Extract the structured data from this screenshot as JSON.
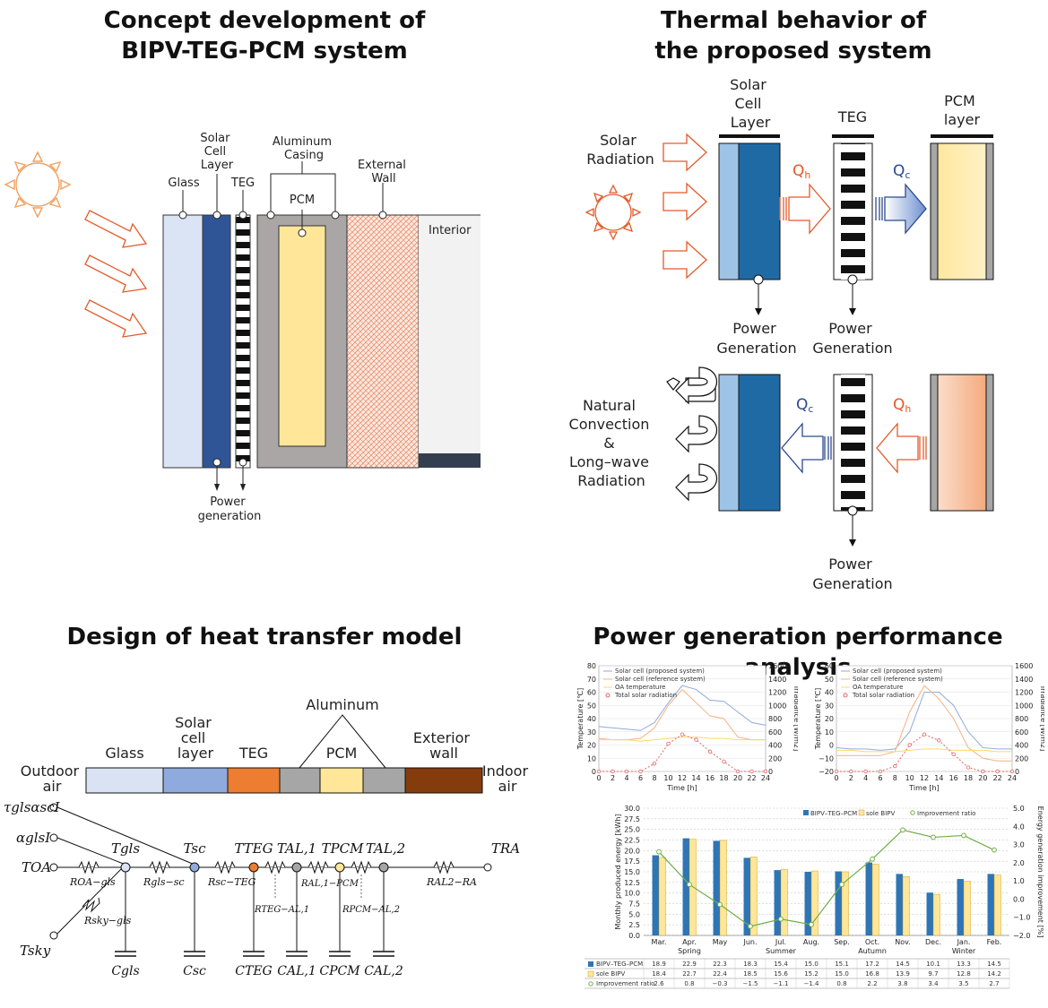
{
  "titles": {
    "concept": [
      "Concept development of",
      "BIPV-TEG-PCM system"
    ],
    "thermal": [
      "Thermal behavior of",
      "the proposed system"
    ],
    "heat": "Design of heat transfer model",
    "power": "Power generation performance analysis"
  },
  "concept": {
    "glass": "Glass",
    "solar_cell": [
      "Solar",
      "Cell",
      "Layer"
    ],
    "teg": "TEG",
    "aluminum": [
      "Aluminum",
      "Casing"
    ],
    "pcm": "PCM",
    "external_wall": [
      "External",
      "Wall"
    ],
    "interior": "Interior",
    "power": [
      "Power",
      "generation"
    ]
  },
  "thermal": {
    "solar_radiation": [
      "Solar",
      "Radiation"
    ],
    "solar_cell": [
      "Solar",
      "Cell",
      "Layer"
    ],
    "teg": "TEG",
    "pcm": [
      "PCM",
      "layer"
    ],
    "qh": "Q",
    "qc": "Q",
    "qh_sub": "h",
    "qc_sub": "c",
    "power": [
      "Power",
      "Generation"
    ],
    "natural": [
      "Natural",
      "Convection",
      "&",
      "Long–wave",
      "Radiation"
    ]
  },
  "heat": {
    "layers": [
      "Glass",
      "Solar cell layer",
      "TEG",
      "Aluminum",
      "PCM",
      "Exterior wall"
    ],
    "solar_layer": [
      "Solar",
      "cell",
      "layer"
    ],
    "exterior": [
      "Exterior",
      "wall"
    ],
    "outdoor": [
      "Outdoor",
      "air"
    ],
    "indoor": [
      "Indoor",
      "air"
    ],
    "inputs": [
      "τglsαscI",
      "αglsI",
      "TOA",
      "Tsky"
    ],
    "nodes": [
      "Tgls",
      "Tsc",
      "TTEG",
      "TAL,1",
      "TPCM",
      "TAL,2",
      "TRA"
    ],
    "resistances": [
      "ROA−gls",
      "Rgls−sc",
      "Rsc−TEG",
      "RTEG−AL,1",
      "RAL,1−PCM",
      "RPCM−AL,2",
      "RAL2−RA",
      "Rsky−gls"
    ],
    "caps": [
      "Cgls",
      "Csc",
      "CTEG",
      "CAL,1",
      "CPCM",
      "CAL,2"
    ]
  },
  "colors": {
    "glass": "#dbe4f4",
    "solar": "#2c4f97",
    "solar_light": "#8eaadb",
    "teg": "#ed7d31",
    "al": "#a6a6a6",
    "pcm": "#ffe699",
    "wall": "#843c0c",
    "orange_arrow": "#e35a2a",
    "blue_arrow": "#2b4a8e",
    "bipv_bar": "#2e75b6",
    "sole_bar": "#ffe699",
    "ratio": "#70ad47"
  },
  "chart_data": [
    {
      "type": "line",
      "title": "",
      "xlabel": "Time [h]",
      "ylabel": "Temperature [℃]",
      "y2label": "Irradiance [W/m2]",
      "x": [
        0,
        2,
        4,
        6,
        8,
        10,
        12,
        14,
        16,
        18,
        20,
        22,
        24
      ],
      "ylim": [
        0,
        80
      ],
      "y2lim": [
        0,
        1600
      ],
      "xticks": [
        "0",
        "2",
        "4",
        "6",
        "8",
        "10",
        "12",
        "14",
        "16",
        "18",
        "20",
        "22",
        "24"
      ],
      "yticks": [
        "0",
        "10",
        "20",
        "30",
        "40",
        "50",
        "60",
        "70",
        "80"
      ],
      "y2ticks": [
        "0",
        "200",
        "400",
        "600",
        "800",
        "1000",
        "1200",
        "1400",
        "1600"
      ],
      "legend": [
        "Solar cell (proposed system)",
        "Solar cell (reference system)",
        "OA temperature",
        "Total solar radiation"
      ],
      "series": [
        {
          "name": "Solar cell (proposed system)",
          "values": [
            34,
            33,
            32,
            31,
            37,
            52,
            65,
            62,
            54,
            53,
            45,
            37,
            35
          ]
        },
        {
          "name": "Solar cell (reference system)",
          "values": [
            25,
            24,
            24,
            25,
            33,
            50,
            62,
            52,
            42,
            40,
            26,
            24,
            24
          ]
        },
        {
          "name": "OA temperature",
          "values": [
            24,
            24,
            24,
            23,
            24,
            25,
            26,
            26,
            25,
            25,
            24,
            24,
            24
          ]
        },
        {
          "name": "Total solar radiation",
          "axis": "y2",
          "values": [
            0,
            0,
            0,
            0,
            120,
            420,
            560,
            480,
            300,
            150,
            0,
            0,
            0
          ]
        }
      ]
    },
    {
      "type": "line",
      "title": "",
      "xlabel": "Time [h]",
      "ylabel": "Temperature [℃]",
      "y2label": "Irradiance [W/m2]",
      "x": [
        0,
        2,
        4,
        6,
        8,
        10,
        12,
        14,
        16,
        18,
        20,
        22,
        24
      ],
      "ylim": [
        -20,
        60
      ],
      "y2lim": [
        0,
        1600
      ],
      "xticks": [
        "0",
        "2",
        "4",
        "6",
        "8",
        "10",
        "12",
        "14",
        "16",
        "18",
        "20",
        "22",
        "24"
      ],
      "yticks": [
        "−20",
        "−10",
        "0",
        "10",
        "20",
        "30",
        "40",
        "50",
        "60"
      ],
      "y2ticks": [
        "0",
        "200",
        "400",
        "600",
        "800",
        "1000",
        "1200",
        "1400",
        "1600"
      ],
      "legend": [
        "Solar cell (proposed system)",
        "Solar cell (reference system)",
        "OA temperature",
        "Total solar radiation"
      ],
      "series": [
        {
          "name": "Solar cell (proposed system)",
          "values": [
            -2,
            -3,
            -3,
            -4,
            -3,
            10,
            40,
            40,
            30,
            10,
            -2,
            -3,
            -3
          ]
        },
        {
          "name": "Solar cell (reference system)",
          "values": [
            -8,
            -8,
            -8,
            -8,
            -5,
            25,
            45,
            35,
            20,
            -2,
            -10,
            -12,
            -12
          ]
        },
        {
          "name": "OA temperature",
          "values": [
            -4,
            -4,
            -5,
            -5,
            -5,
            -4,
            -3,
            -3,
            -4,
            -4,
            -4,
            -5,
            -5
          ]
        },
        {
          "name": "Total solar radiation",
          "axis": "y2",
          "values": [
            0,
            0,
            0,
            0,
            80,
            400,
            560,
            470,
            260,
            60,
            0,
            0,
            0
          ]
        }
      ]
    },
    {
      "type": "bar",
      "title": "",
      "xlabel": "",
      "ylabel": "Monthly produced energy [kWh]",
      "y2label": "Energy generation improvement [%]",
      "categories": [
        "Mar.",
        "Apr.",
        "May",
        "Jun.",
        "Jul.",
        "Aug.",
        "Sep.",
        "Oct.",
        "Nov.",
        "Dec.",
        "Jan.",
        "Feb."
      ],
      "seasons": [
        "Spring",
        "Summer",
        "Autumn",
        "Winter"
      ],
      "ylim": [
        0,
        30
      ],
      "y2lim": [
        -2,
        5
      ],
      "yticks": [
        "0.0",
        "2.5",
        "5.0",
        "7.5",
        "10.0",
        "12.5",
        "15.0",
        "17.5",
        "20.0",
        "22.5",
        "25.0",
        "27.5",
        "30.0"
      ],
      "y2ticks": [
        "−2.0",
        "−1.0",
        "0.0",
        "1.0",
        "2.0",
        "3.0",
        "4.0",
        "5.0"
      ],
      "series": [
        {
          "name": "BIPV–TEG–PCM",
          "values": [
            18.9,
            22.9,
            22.3,
            18.3,
            15.4,
            15.0,
            15.1,
            17.2,
            14.5,
            10.1,
            13.3,
            14.5
          ]
        },
        {
          "name": "sole BIPV",
          "values": [
            18.4,
            22.7,
            22.4,
            18.5,
            15.6,
            15.2,
            15.0,
            16.8,
            13.9,
            9.7,
            12.8,
            14.2
          ]
        },
        {
          "name": "Improvement ratio",
          "axis": "y2",
          "values": [
            2.6,
            0.8,
            -0.3,
            -1.5,
            -1.1,
            -1.4,
            0.8,
            2.2,
            3.8,
            3.4,
            3.5,
            2.7
          ]
        }
      ],
      "table_labels": [
        "BIPV–TEG–PCM",
        "sole BIPV",
        "Improvement ratio"
      ],
      "table_rows": [
        [
          "18.9",
          "22.9",
          "22.3",
          "18.3",
          "15.4",
          "15.0",
          "15.1",
          "17.2",
          "14.5",
          "10.1",
          "13.3",
          "14.5"
        ],
        [
          "18.4",
          "22.7",
          "22.4",
          "18.5",
          "15.6",
          "15.2",
          "15.0",
          "16.8",
          "13.9",
          "9.7",
          "12.8",
          "14.2"
        ],
        [
          "2.6",
          "0.8",
          "−0.3",
          "−1.5",
          "−1.1",
          "−1.4",
          "0.8",
          "2.2",
          "3.8",
          "3.4",
          "3.5",
          "2.7"
        ]
      ]
    }
  ]
}
